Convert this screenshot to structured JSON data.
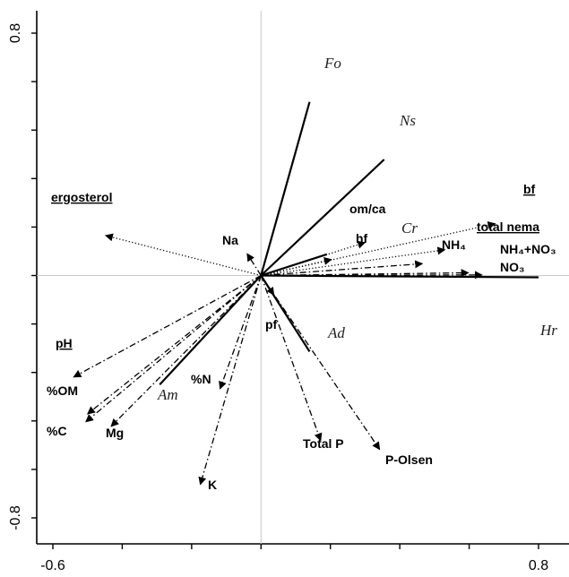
{
  "chart_data": {
    "type": "scatter",
    "title": "",
    "xlabel": "",
    "ylabel": "",
    "xlim": [
      -0.6,
      0.8
    ],
    "ylim": [
      -0.8,
      0.8
    ],
    "x_ticks": [
      "-0.6",
      "0.8"
    ],
    "y_ticks": [
      "0.8",
      "-0.8"
    ],
    "grid": false,
    "species": [
      {
        "name": "Fo",
        "x": 0.14,
        "y": 0.573
      },
      {
        "name": "Ns",
        "x": 0.355,
        "y": 0.383
      },
      {
        "name": "Cr",
        "x": 0.19,
        "y": 0.07
      },
      {
        "name": "Hr",
        "x": 0.8,
        "y": -0.006
      },
      {
        "name": "Ad",
        "x": 0.14,
        "y": -0.251
      },
      {
        "name": "Am",
        "x": -0.292,
        "y": -0.36
      }
    ],
    "variables": [
      {
        "name": "bf",
        "x": 0.675,
        "y": 0.171,
        "style": "dotted",
        "underline": true
      },
      {
        "name": "total nema",
        "x": 0.53,
        "y": 0.085,
        "style": "dotted",
        "underline": true
      },
      {
        "name": "om/ca",
        "x": 0.3,
        "y": 0.109,
        "style": "dotted",
        "underline": false
      },
      {
        "name": "hf",
        "x": 0.203,
        "y": 0.053,
        "style": "dotted",
        "underline": false
      },
      {
        "name": "NH₄",
        "x": 0.465,
        "y": 0.039,
        "style": "dashdot",
        "underline": false
      },
      {
        "name": "NH₄+NO₃",
        "x": 0.598,
        "y": 0.009,
        "style": "dashdot",
        "underline": false
      },
      {
        "name": "NO₃",
        "x": 0.637,
        "y": 0.002,
        "style": "dashdot",
        "underline": false
      },
      {
        "name": "ergosterol",
        "x": -0.448,
        "y": 0.132,
        "style": "dotted",
        "underline": true
      },
      {
        "name": "Na",
        "x": -0.04,
        "y": 0.072,
        "style": "dashdot",
        "underline": false
      },
      {
        "name": "pH",
        "x": -0.54,
        "y": -0.335,
        "style": "dashdot",
        "underline": true
      },
      {
        "name": "%OM",
        "x": -0.5,
        "y": -0.457,
        "style": "dashdot",
        "underline": false
      },
      {
        "name": "%C",
        "x": -0.505,
        "y": -0.483,
        "style": "dashdot",
        "underline": false
      },
      {
        "name": "Mg",
        "x": -0.432,
        "y": -0.498,
        "style": "dashdot",
        "underline": false
      },
      {
        "name": "%N",
        "x": -0.118,
        "y": -0.374,
        "style": "dashdot",
        "underline": false
      },
      {
        "name": "K",
        "x": -0.175,
        "y": -0.69,
        "style": "dashdot",
        "underline": false
      },
      {
        "name": "pf",
        "x": 0.037,
        "y": -0.064,
        "style": "dashdot",
        "underline": false
      },
      {
        "name": "Total P",
        "x": 0.172,
        "y": -0.545,
        "style": "dashdot",
        "underline": false
      },
      {
        "name": "P-Olsen",
        "x": 0.342,
        "y": -0.574,
        "style": "dashdot",
        "underline": false
      }
    ]
  }
}
